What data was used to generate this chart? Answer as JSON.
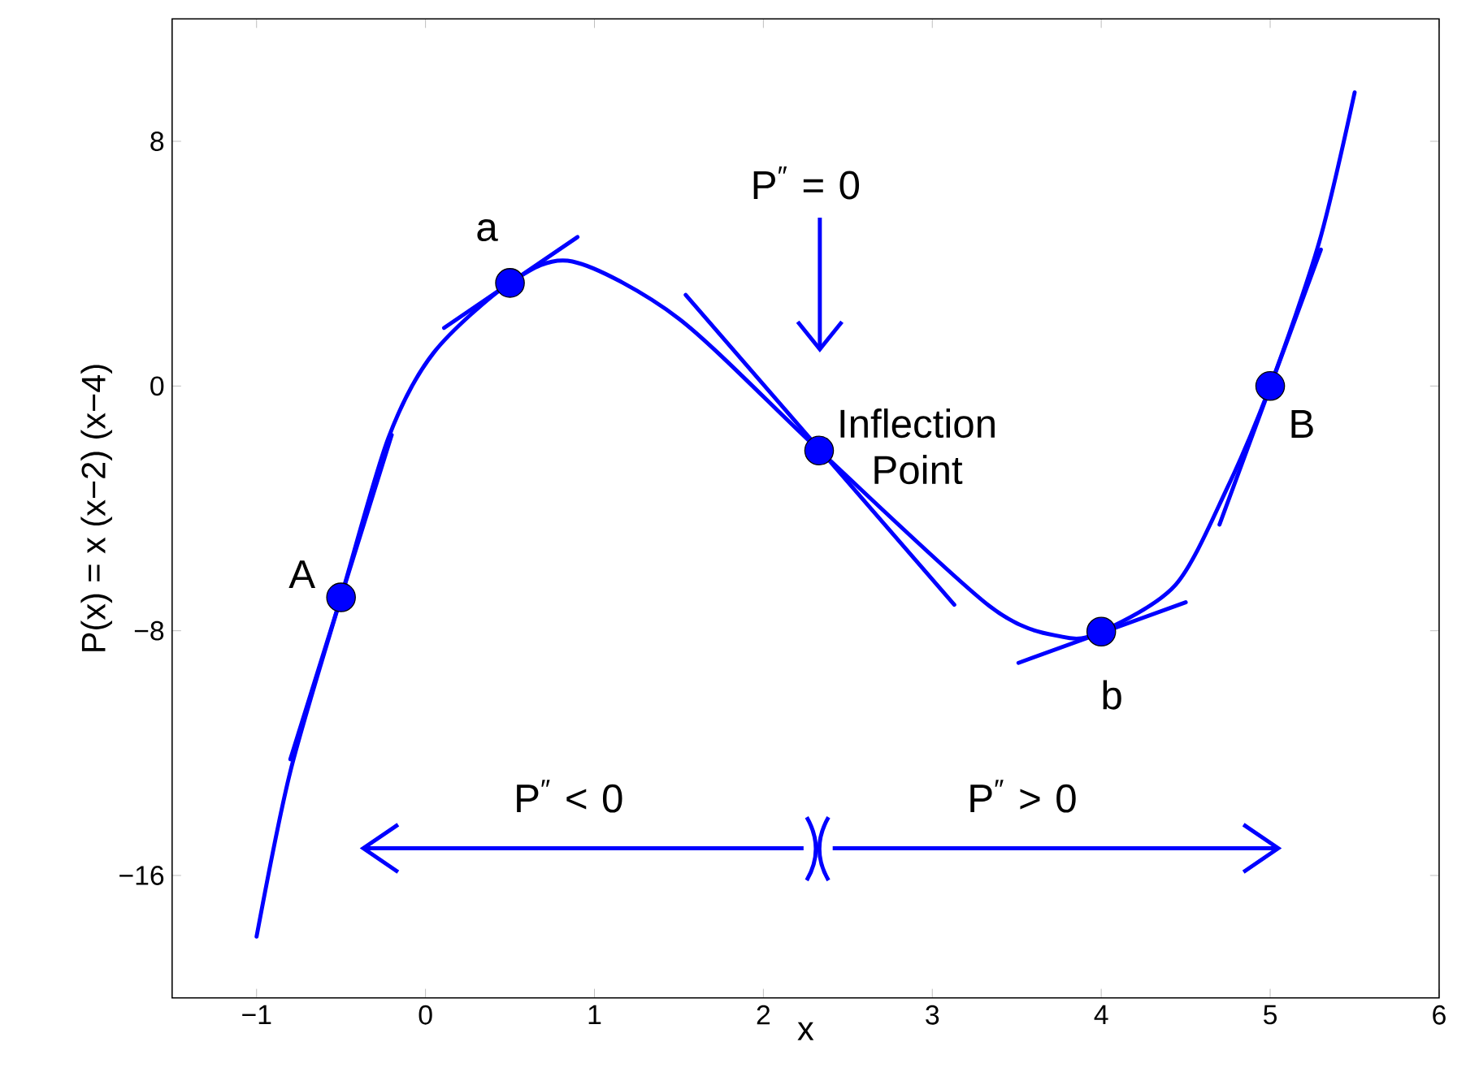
{
  "chart_data": {
    "type": "line",
    "xlabel": "x",
    "ylabel": "P(x) = x (x−2) (x−4)",
    "xlim": [
      -1.5,
      6
    ],
    "ylim": [
      -20,
      12
    ],
    "xticks": [
      {
        "value": -1,
        "label": "−1"
      },
      0,
      1,
      2,
      3,
      4,
      5,
      6
    ],
    "yticks": [
      {
        "value": -16,
        "label": "−16"
      },
      {
        "value": -8,
        "label": "−8"
      },
      0,
      8
    ],
    "grid": false,
    "marker": "none",
    "line_style": "solid",
    "series": [
      {
        "color": "#0000ff",
        "x": [
          -1,
          -0.8,
          -0.5,
          -0.22,
          0.05,
          0.5,
          0.87,
          1.5,
          2.33,
          3.34,
          3.77,
          4,
          4.44,
          4.74,
          5,
          5.29,
          5.5
        ],
        "values": [
          -18.0,
          -12.6,
          -6.9,
          -1.7,
          1.1,
          3.37,
          4.07,
          2.2,
          -2.1,
          -7.2,
          -8.2,
          -8.03,
          -6.5,
          -3.4,
          0,
          4.7,
          9.6
        ]
      },
      {
        "color": "#0000ff",
        "x": [
          -0.8,
          -0.2
        ],
        "values": [
          -12.2,
          -1.6
        ]
      },
      {
        "color": "#0000ff",
        "x": [
          0.11,
          0.9
        ],
        "values": [
          1.9,
          4.87
        ]
      },
      {
        "color": "#0000ff",
        "x": [
          1.54,
          3.13
        ],
        "values": [
          2.98,
          -7.15
        ]
      },
      {
        "color": "#0000ff",
        "x": [
          3.51,
          4.5
        ],
        "values": [
          -9.05,
          -7.07
        ]
      },
      {
        "color": "#0000ff",
        "x": [
          4.7,
          5.3
        ],
        "values": [
          -4.53,
          4.46
        ]
      },
      {
        "type": "scatter",
        "marker": "circle",
        "color": "#0000ff",
        "x": [
          -0.5,
          0.5,
          2.33,
          4,
          5
        ],
        "values": [
          -6.91,
          3.37,
          -2.11,
          -8.03,
          0
        ]
      }
    ],
    "annotations": [
      {
        "text": "A",
        "x": -0.5,
        "y": -6.91
      },
      {
        "text": "a",
        "x": 0.5,
        "y": 3.37
      },
      {
        "text": "Inflection Point",
        "x": 2.33,
        "y": -2.11
      },
      {
        "text": "b",
        "x": 4,
        "y": -8.03
      },
      {
        "text": "B",
        "x": 5,
        "y": 0
      },
      "P$^{″}$ = 0",
      "P$^{″}$ < 0",
      "P$^{″}$ > 0"
    ]
  }
}
